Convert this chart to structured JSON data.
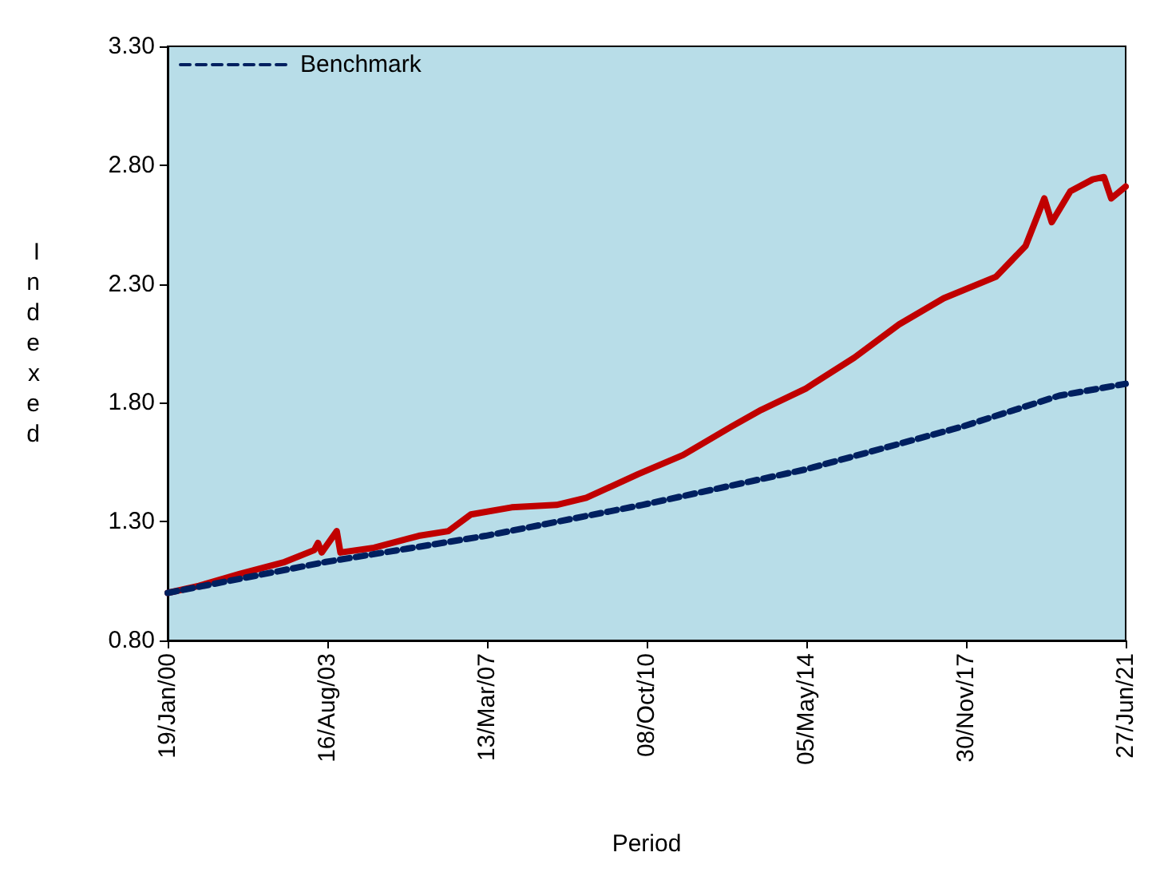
{
  "chart_data": {
    "type": "line",
    "xlabel": "Period",
    "ylabel": "Indexed",
    "legend": "top left",
    "grid": false,
    "xlim": [
      "2000-01-19",
      "2021-06-27"
    ],
    "xticks": [
      {
        "value": "2000-01-19",
        "label": "19/Jan/00"
      },
      {
        "value": "2003-08-16",
        "label": "16/Aug/03"
      },
      {
        "value": "2007-03-13",
        "label": "13/Mar/07"
      },
      {
        "value": "2010-10-08",
        "label": "08/Oct/10"
      },
      {
        "value": "2014-05-05",
        "label": "05/May/14"
      },
      {
        "value": "2017-11-30",
        "label": "30/Nov/17"
      },
      {
        "value": "2021-06-27",
        "label": "27/Jun/21"
      }
    ],
    "ylim": [
      0.8,
      3.3
    ],
    "yticks": [
      {
        "value": 0.8,
        "label": "0.80"
      },
      {
        "value": 1.3,
        "label": "1.30"
      },
      {
        "value": 1.8,
        "label": "1.80"
      },
      {
        "value": 2.3,
        "label": "2.30"
      },
      {
        "value": 2.8,
        "label": "2.80"
      },
      {
        "value": 3.3,
        "label": "3.30"
      }
    ],
    "series": [
      {
        "color": "#c00000",
        "line_style": "solid",
        "x": [
          "2000-01-19",
          "2000-10",
          "2001-09",
          "2002-09",
          "2003-05",
          "2003-06",
          "2003-07",
          "2003-11",
          "2003-12",
          "2004-09",
          "2005-09",
          "2006-05",
          "2006-11",
          "2007-10",
          "2008-10",
          "2009-06",
          "2010-08",
          "2011-08",
          "2012-09",
          "2013-05",
          "2014-05",
          "2015-06",
          "2016-06",
          "2017-06",
          "2018-08",
          "2019-04",
          "2019-09",
          "2019-11",
          "2020-04",
          "2020-10",
          "2021-01",
          "2021-03",
          "2021-06-27"
        ],
        "values": [
          1.0,
          1.03,
          1.08,
          1.13,
          1.18,
          1.21,
          1.17,
          1.26,
          1.17,
          1.19,
          1.24,
          1.26,
          1.33,
          1.36,
          1.37,
          1.4,
          1.5,
          1.58,
          1.7,
          1.77,
          1.86,
          1.99,
          2.13,
          2.24,
          2.33,
          2.46,
          2.66,
          2.56,
          2.69,
          2.74,
          2.75,
          2.66,
          2.71
        ]
      },
      {
        "name": "Benchmark",
        "color": "#002060",
        "line_style": "dashed",
        "x": [
          "2000-01-19",
          "2003-08",
          "2007-03",
          "2010-09",
          "2014-05",
          "2017-11",
          "2020-01",
          "2021-06-27"
        ],
        "values": [
          1.0,
          1.13,
          1.24,
          1.37,
          1.52,
          1.7,
          1.83,
          1.88
        ]
      }
    ]
  }
}
